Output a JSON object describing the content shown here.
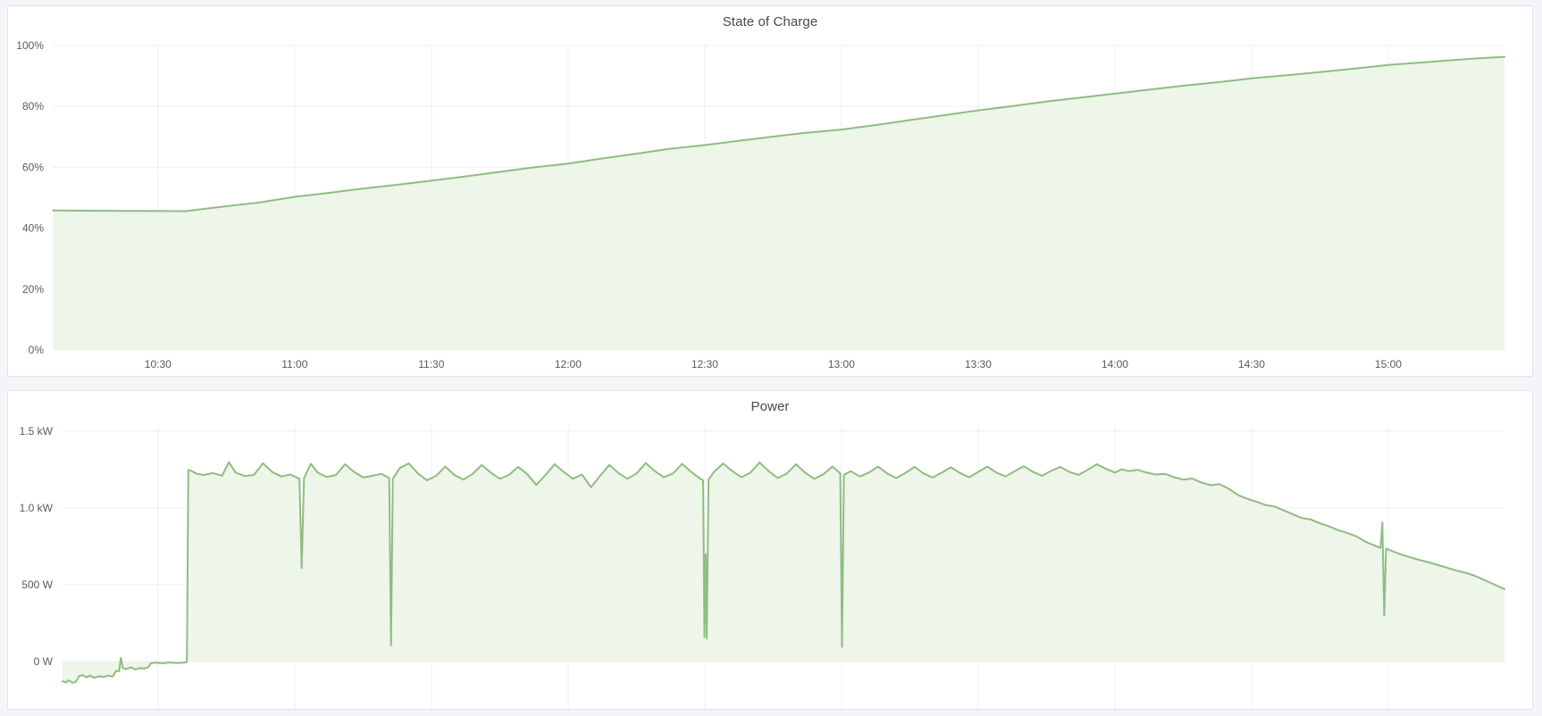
{
  "page": {
    "background": "#f4f5f9"
  },
  "colors": {
    "line": "#8fbd81",
    "fill": "#eef5e9",
    "grid": "rgba(40,46,60,0.08)",
    "tick_text": "#565b63",
    "title_text": "#44494f",
    "panel_bg": "#ffffff",
    "panel_border": "#e0e3e8"
  },
  "panels": [
    {
      "title": "State of Charge"
    },
    {
      "title": "Power"
    }
  ],
  "chart_data": [
    {
      "id": "soc",
      "type": "area",
      "title": "State of Charge",
      "unit": "percent",
      "legend": "none",
      "grid": "on",
      "ylim": [
        0,
        100
      ],
      "x_range_minutes": [
        606.9,
        925.5
      ],
      "y_ticks": [
        {
          "v": 0,
          "label": "0%"
        },
        {
          "v": 20,
          "label": "20%"
        },
        {
          "v": 40,
          "label": "40%"
        },
        {
          "v": 60,
          "label": "60%"
        },
        {
          "v": 80,
          "label": "80%"
        },
        {
          "v": 100,
          "label": "100%"
        }
      ],
      "x_ticks": [
        {
          "t": 630,
          "label": "10:30"
        },
        {
          "t": 660,
          "label": "11:00"
        },
        {
          "t": 690,
          "label": "11:30"
        },
        {
          "t": 720,
          "label": "12:00"
        },
        {
          "t": 750,
          "label": "12:30"
        },
        {
          "t": 780,
          "label": "13:00"
        },
        {
          "t": 810,
          "label": "13:30"
        },
        {
          "t": 840,
          "label": "14:00"
        },
        {
          "t": 870,
          "label": "14:30"
        },
        {
          "t": 900,
          "label": "15:00"
        }
      ],
      "show_x_labels": true,
      "points": [
        [
          607,
          45.8
        ],
        [
          614,
          45.75
        ],
        [
          621,
          45.7
        ],
        [
          628,
          45.65
        ],
        [
          634,
          45.6
        ],
        [
          636,
          45.6
        ],
        [
          645,
          47.2
        ],
        [
          652,
          48.4
        ],
        [
          660,
          50.3
        ],
        [
          668,
          51.7
        ],
        [
          675,
          53.0
        ],
        [
          682,
          54.2
        ],
        [
          690,
          55.6
        ],
        [
          698,
          57.1
        ],
        [
          705,
          58.5
        ],
        [
          712,
          59.9
        ],
        [
          720,
          61.2
        ],
        [
          727,
          62.8
        ],
        [
          735,
          64.5
        ],
        [
          742,
          66.0
        ],
        [
          750,
          67.3
        ],
        [
          758,
          68.8
        ],
        [
          765,
          70.1
        ],
        [
          772,
          71.3
        ],
        [
          780,
          72.4
        ],
        [
          788,
          74.0
        ],
        [
          795,
          75.5
        ],
        [
          803,
          77.2
        ],
        [
          810,
          78.7
        ],
        [
          818,
          80.2
        ],
        [
          825,
          81.6
        ],
        [
          833,
          83.0
        ],
        [
          840,
          84.2
        ],
        [
          848,
          85.6
        ],
        [
          855,
          86.8
        ],
        [
          863,
          88.0
        ],
        [
          870,
          89.2
        ],
        [
          878,
          90.3
        ],
        [
          885,
          91.3
        ],
        [
          893,
          92.5
        ],
        [
          900,
          93.6
        ],
        [
          908,
          94.5
        ],
        [
          915,
          95.3
        ],
        [
          920,
          95.8
        ],
        [
          925.5,
          96.3
        ]
      ]
    },
    {
      "id": "power",
      "type": "area",
      "title": "Power",
      "unit": "watt",
      "legend": "none",
      "grid": "on",
      "ylim": [
        -413,
        1500
      ],
      "x_range_minutes": [
        608.8,
        925.5
      ],
      "y_ticks": [
        {
          "v": 0,
          "label": "0 W"
        },
        {
          "v": 500,
          "label": "500 W"
        },
        {
          "v": 1000,
          "label": "1.0 kW"
        },
        {
          "v": 1500,
          "label": "1.5 kW"
        }
      ],
      "x_ticks": [
        {
          "t": 630,
          "label": "10:30"
        },
        {
          "t": 660,
          "label": "11:00"
        },
        {
          "t": 690,
          "label": "11:30"
        },
        {
          "t": 720,
          "label": "12:00"
        },
        {
          "t": 750,
          "label": "12:30"
        },
        {
          "t": 780,
          "label": "13:00"
        },
        {
          "t": 810,
          "label": "13:30"
        },
        {
          "t": 840,
          "label": "14:00"
        },
        {
          "t": 870,
          "label": "14:30"
        },
        {
          "t": 900,
          "label": "15:00"
        }
      ],
      "show_x_labels": false,
      "points": [
        [
          609,
          -128
        ],
        [
          609.7,
          -136
        ],
        [
          610.4,
          -122
        ],
        [
          611.2,
          -140
        ],
        [
          612,
          -130
        ],
        [
          612.6,
          -96
        ],
        [
          613.4,
          -88
        ],
        [
          614.2,
          -103
        ],
        [
          615,
          -92
        ],
        [
          616,
          -106
        ],
        [
          617,
          -96
        ],
        [
          618,
          -101
        ],
        [
          619,
          -92
        ],
        [
          620,
          -98
        ],
        [
          620.8,
          -60
        ],
        [
          621.4,
          -64
        ],
        [
          621.8,
          24
        ],
        [
          622.2,
          -42
        ],
        [
          623,
          -50
        ],
        [
          624,
          -38
        ],
        [
          625,
          -52
        ],
        [
          626,
          -42
        ],
        [
          627,
          -46
        ],
        [
          627.8,
          -36
        ],
        [
          628.4,
          -12
        ],
        [
          629.5,
          -7
        ],
        [
          631,
          -12
        ],
        [
          632.5,
          -6
        ],
        [
          634,
          -10
        ],
        [
          635.5,
          -7
        ],
        [
          636.3,
          -5
        ],
        [
          636.6,
          1248
        ],
        [
          637,
          1245
        ],
        [
          638.5,
          1222
        ],
        [
          640,
          1215
        ],
        [
          642,
          1228
        ],
        [
          644,
          1210
        ],
        [
          645.5,
          1298
        ],
        [
          647,
          1230
        ],
        [
          649,
          1208
        ],
        [
          651,
          1215
        ],
        [
          653,
          1292
        ],
        [
          655,
          1235
        ],
        [
          657,
          1205
        ],
        [
          659,
          1218
        ],
        [
          661,
          1190
        ],
        [
          661.5,
          610
        ],
        [
          662,
          1195
        ],
        [
          663.5,
          1288
        ],
        [
          665,
          1230
        ],
        [
          667,
          1202
        ],
        [
          669,
          1215
        ],
        [
          671,
          1285
        ],
        [
          673,
          1235
        ],
        [
          675,
          1198
        ],
        [
          677,
          1210
        ],
        [
          679,
          1222
        ],
        [
          680.7,
          1195
        ],
        [
          681.1,
          105
        ],
        [
          681.5,
          1190
        ],
        [
          683,
          1260
        ],
        [
          685,
          1290
        ],
        [
          687,
          1225
        ],
        [
          689,
          1180
        ],
        [
          691,
          1210
        ],
        [
          693,
          1270
        ],
        [
          695,
          1215
        ],
        [
          697,
          1185
        ],
        [
          699,
          1222
        ],
        [
          701,
          1280
        ],
        [
          703,
          1230
        ],
        [
          705,
          1190
        ],
        [
          707,
          1215
        ],
        [
          709,
          1268
        ],
        [
          711,
          1220
        ],
        [
          713,
          1150
        ],
        [
          715,
          1215
        ],
        [
          717,
          1285
        ],
        [
          719,
          1235
        ],
        [
          721,
          1190
        ],
        [
          723,
          1218
        ],
        [
          725,
          1135
        ],
        [
          727,
          1210
        ],
        [
          729,
          1280
        ],
        [
          731,
          1228
        ],
        [
          733,
          1190
        ],
        [
          735,
          1225
        ],
        [
          737,
          1293
        ],
        [
          739,
          1240
        ],
        [
          741,
          1200
        ],
        [
          743,
          1225
        ],
        [
          745,
          1288
        ],
        [
          747,
          1235
        ],
        [
          749,
          1190
        ],
        [
          749.6,
          1180
        ],
        [
          749.9,
          160
        ],
        [
          750.15,
          700
        ],
        [
          750.4,
          150
        ],
        [
          750.8,
          1185
        ],
        [
          752,
          1235
        ],
        [
          754,
          1290
        ],
        [
          756,
          1240
        ],
        [
          758,
          1200
        ],
        [
          760,
          1230
        ],
        [
          762,
          1296
        ],
        [
          764,
          1240
        ],
        [
          766,
          1195
        ],
        [
          768,
          1225
        ],
        [
          770,
          1285
        ],
        [
          772,
          1230
        ],
        [
          774,
          1190
        ],
        [
          776,
          1220
        ],
        [
          778,
          1270
        ],
        [
          779.7,
          1225
        ],
        [
          780.1,
          95
        ],
        [
          780.5,
          1215
        ],
        [
          782,
          1240
        ],
        [
          784,
          1205
        ],
        [
          786,
          1230
        ],
        [
          788,
          1270
        ],
        [
          790,
          1225
        ],
        [
          792,
          1195
        ],
        [
          794,
          1228
        ],
        [
          796,
          1268
        ],
        [
          798,
          1225
        ],
        [
          800,
          1198
        ],
        [
          802,
          1230
        ],
        [
          804,
          1265
        ],
        [
          806,
          1228
        ],
        [
          808,
          1200
        ],
        [
          810,
          1235
        ],
        [
          812,
          1270
        ],
        [
          814,
          1230
        ],
        [
          816,
          1205
        ],
        [
          818,
          1240
        ],
        [
          820,
          1272
        ],
        [
          822,
          1235
        ],
        [
          824,
          1210
        ],
        [
          826,
          1242
        ],
        [
          828,
          1268
        ],
        [
          830,
          1235
        ],
        [
          832,
          1215
        ],
        [
          834,
          1248
        ],
        [
          836,
          1285
        ],
        [
          838,
          1255
        ],
        [
          840,
          1230
        ],
        [
          841.5,
          1252
        ],
        [
          843,
          1240
        ],
        [
          845,
          1248
        ],
        [
          847,
          1230
        ],
        [
          849,
          1218
        ],
        [
          851,
          1222
        ],
        [
          853,
          1200
        ],
        [
          855,
          1185
        ],
        [
          857,
          1192
        ],
        [
          859,
          1165
        ],
        [
          861,
          1148
        ],
        [
          863,
          1155
        ],
        [
          865,
          1125
        ],
        [
          867,
          1085
        ],
        [
          869,
          1060
        ],
        [
          871,
          1042
        ],
        [
          873,
          1020
        ],
        [
          875,
          1010
        ],
        [
          877,
          985
        ],
        [
          879,
          960
        ],
        [
          881,
          935
        ],
        [
          883,
          925
        ],
        [
          885,
          900
        ],
        [
          887,
          880
        ],
        [
          889,
          855
        ],
        [
          891,
          838
        ],
        [
          893,
          815
        ],
        [
          895,
          780
        ],
        [
          897,
          755
        ],
        [
          898.3,
          740
        ],
        [
          898.7,
          905
        ],
        [
          899.1,
          300
        ],
        [
          899.5,
          735
        ],
        [
          901,
          718
        ],
        [
          903,
          695
        ],
        [
          905,
          678
        ],
        [
          907,
          660
        ],
        [
          909,
          645
        ],
        [
          911,
          628
        ],
        [
          913,
          610
        ],
        [
          915,
          592
        ],
        [
          917,
          578
        ],
        [
          919,
          558
        ],
        [
          921,
          532
        ],
        [
          923,
          505
        ],
        [
          924.5,
          485
        ],
        [
          925.5,
          472
        ]
      ]
    }
  ]
}
